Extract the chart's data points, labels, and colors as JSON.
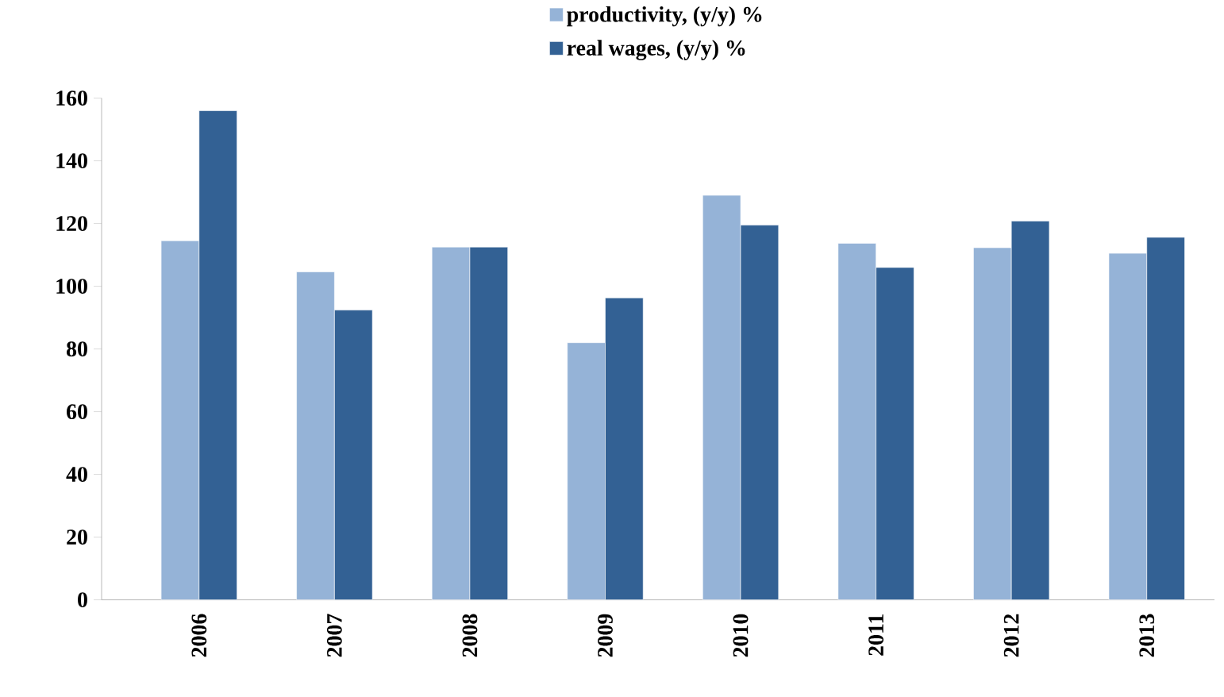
{
  "chart_data": {
    "type": "bar",
    "categories": [
      "2006",
      "2007",
      "2008",
      "2009",
      "2010",
      "2011",
      "2012",
      "2013"
    ],
    "series": [
      {
        "name": "productivity, (y/y) %",
        "color": "#95b3d7",
        "values": [
          114.5,
          104.6,
          112.5,
          82,
          129,
          113.7,
          112.3,
          110.5
        ]
      },
      {
        "name": "real wages, (y/y) %",
        "color": "#336194",
        "values": [
          156,
          92.4,
          112.5,
          96.3,
          119.5,
          106,
          120.8,
          115.6
        ]
      }
    ],
    "ylim": [
      0,
      160
    ],
    "yticks": [
      0,
      20,
      40,
      60,
      80,
      100,
      120,
      140,
      160
    ],
    "grid": false,
    "legend": "top"
  }
}
